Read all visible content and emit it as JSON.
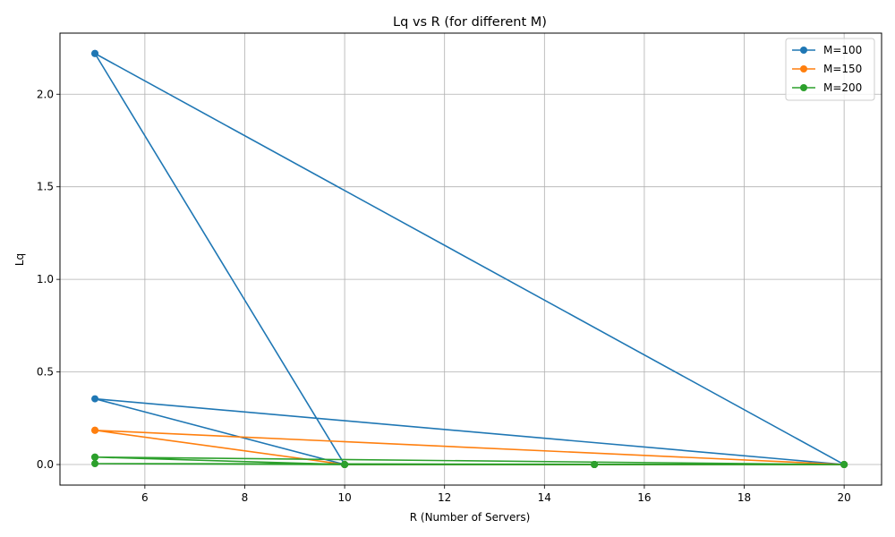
{
  "chart_data": {
    "type": "line",
    "title": "Lq vs R (for different M)",
    "xlabel": "R (Number of Servers)",
    "ylabel": "Lq",
    "xlim": [
      4.3,
      20.75
    ],
    "ylim": [
      -0.111,
      2.33
    ],
    "xticks": [
      6,
      8,
      10,
      12,
      14,
      16,
      18,
      20
    ],
    "xtick_labels": [
      "6",
      "8",
      "10",
      "12",
      "14",
      "16",
      "18",
      "20"
    ],
    "yticks": [
      0.0,
      0.5,
      1.0,
      1.5,
      2.0
    ],
    "ytick_labels": [
      "0.0",
      "0.5",
      "1.0",
      "1.5",
      "2.0"
    ],
    "grid": true,
    "legend_position": "upper right",
    "series": [
      {
        "name": "M=100",
        "color": "#1f77b4",
        "x": [
          5,
          10,
          15,
          20,
          5,
          10,
          15,
          20,
          5,
          10,
          15,
          20
        ],
        "y": [
          2.22,
          0.0,
          0.0,
          0.0,
          0.355,
          0.0,
          0.0,
          0.0,
          2.22,
          0.0,
          0.0,
          0.0
        ]
      },
      {
        "name": "M=150",
        "color": "#ff7f0e",
        "x": [
          5,
          10,
          15,
          20,
          5,
          10,
          15,
          20
        ],
        "y": [
          0.185,
          0.0,
          0.0,
          0.0,
          0.185,
          0.0,
          0.0,
          0.0
        ]
      },
      {
        "name": "M=200",
        "color": "#2ca02c",
        "x": [
          5,
          10,
          15,
          20,
          5,
          10,
          15,
          20,
          5,
          10,
          15,
          20
        ],
        "y": [
          0.04,
          0.0,
          0.0,
          0.0,
          0.005,
          0.0,
          0.0,
          0.0,
          0.04,
          0.0,
          0.0,
          0.0
        ]
      }
    ]
  }
}
